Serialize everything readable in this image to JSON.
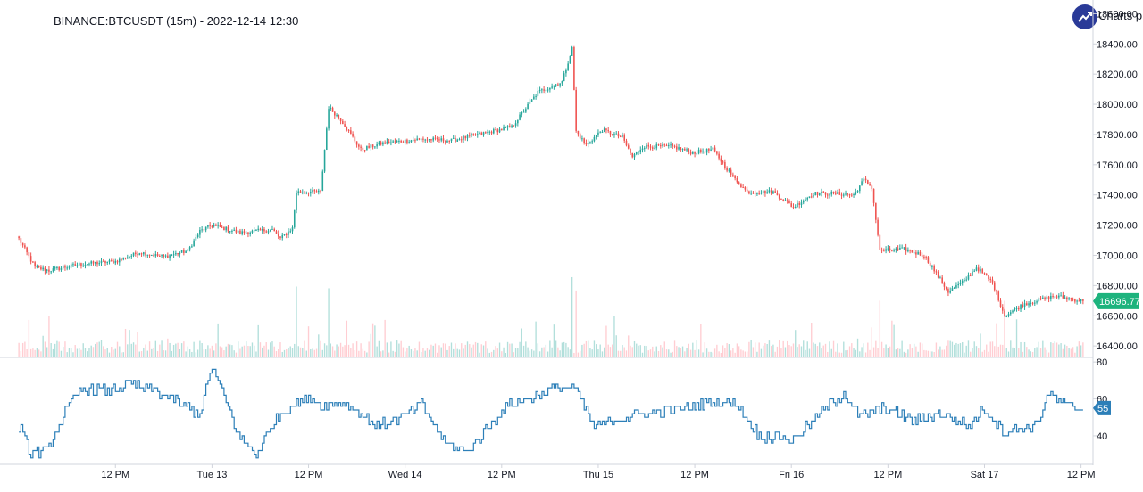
{
  "header": {
    "title": "BINANCE:BTCUSDT (15m) - 2022-12-14 12:30",
    "logo_text": "Charts p"
  },
  "colors": {
    "up": "#26a69a",
    "down": "#ef5350",
    "up_volume": "#b2dfdb",
    "down_volume": "#ffcdd2",
    "rsi_line": "#2c7fb8",
    "last_price_bg": "#1db37d",
    "rsi_badge_bg": "#2c7fb8",
    "axis_text": "#131722",
    "grid_border": "#d1d4dc"
  },
  "chart_data": [
    {
      "type": "candlestick",
      "title": "BINANCE:BTCUSDT (15m) - 2022-12-14 12:30",
      "series_name": "BTCUSDT",
      "interval": "15m",
      "y_ticks": [
        16400,
        16600,
        16800,
        17000,
        17200,
        17400,
        17600,
        17800,
        18000,
        18200,
        18400,
        18600
      ],
      "y_tick_labels": [
        "16400.00",
        "16600.00",
        "16800.00",
        "17000.00",
        "17200.00",
        "17400.00",
        "17600.00",
        "17800.00",
        "18000.00",
        "18200.00",
        "18400.00",
        "18600.00"
      ],
      "ylim": [
        16330,
        18620
      ],
      "x_tick_labels": [
        "12 PM",
        "Tue 13",
        "12 PM",
        "Wed 14",
        "12 PM",
        "Thu 15",
        "12 PM",
        "Fri 16",
        "12 PM",
        "Sat 17",
        "12 PM"
      ],
      "x_tick_bars": [
        48,
        96,
        144,
        192,
        240,
        288,
        336,
        384,
        432,
        480,
        528
      ],
      "bar_count": 530,
      "keypoints": [
        {
          "bar": 0,
          "price": 17110
        },
        {
          "bar": 8,
          "price": 16920
        },
        {
          "bar": 15,
          "price": 16900
        },
        {
          "bar": 30,
          "price": 16940
        },
        {
          "bar": 48,
          "price": 16960
        },
        {
          "bar": 60,
          "price": 17020
        },
        {
          "bar": 72,
          "price": 16990
        },
        {
          "bar": 84,
          "price": 17030
        },
        {
          "bar": 90,
          "price": 17160
        },
        {
          "bar": 96,
          "price": 17200
        },
        {
          "bar": 110,
          "price": 17150
        },
        {
          "bar": 126,
          "price": 17170
        },
        {
          "bar": 130,
          "price": 17110
        },
        {
          "bar": 136,
          "price": 17180
        },
        {
          "bar": 138,
          "price": 17420
        },
        {
          "bar": 150,
          "price": 17420
        },
        {
          "bar": 154,
          "price": 17980
        },
        {
          "bar": 160,
          "price": 17900
        },
        {
          "bar": 170,
          "price": 17700
        },
        {
          "bar": 180,
          "price": 17740
        },
        {
          "bar": 200,
          "price": 17770
        },
        {
          "bar": 215,
          "price": 17760
        },
        {
          "bar": 235,
          "price": 17820
        },
        {
          "bar": 245,
          "price": 17850
        },
        {
          "bar": 258,
          "price": 18080
        },
        {
          "bar": 270,
          "price": 18150
        },
        {
          "bar": 275,
          "price": 18370
        },
        {
          "bar": 277,
          "price": 17820
        },
        {
          "bar": 282,
          "price": 17730
        },
        {
          "bar": 290,
          "price": 17830
        },
        {
          "bar": 300,
          "price": 17780
        },
        {
          "bar": 305,
          "price": 17650
        },
        {
          "bar": 310,
          "price": 17720
        },
        {
          "bar": 325,
          "price": 17720
        },
        {
          "bar": 335,
          "price": 17680
        },
        {
          "bar": 345,
          "price": 17700
        },
        {
          "bar": 355,
          "price": 17520
        },
        {
          "bar": 362,
          "price": 17420
        },
        {
          "bar": 375,
          "price": 17420
        },
        {
          "bar": 385,
          "price": 17320
        },
        {
          "bar": 395,
          "price": 17410
        },
        {
          "bar": 405,
          "price": 17410
        },
        {
          "bar": 415,
          "price": 17400
        },
        {
          "bar": 420,
          "price": 17500
        },
        {
          "bar": 424,
          "price": 17450
        },
        {
          "bar": 428,
          "price": 17030
        },
        {
          "bar": 440,
          "price": 17040
        },
        {
          "bar": 450,
          "price": 17000
        },
        {
          "bar": 455,
          "price": 16900
        },
        {
          "bar": 462,
          "price": 16760
        },
        {
          "bar": 470,
          "price": 16830
        },
        {
          "bar": 476,
          "price": 16920
        },
        {
          "bar": 484,
          "price": 16820
        },
        {
          "bar": 490,
          "price": 16600
        },
        {
          "bar": 500,
          "price": 16680
        },
        {
          "bar": 515,
          "price": 16730
        },
        {
          "bar": 529,
          "price": 16697
        }
      ],
      "volume_spike_bars": [
        138,
        154,
        275,
        277,
        428,
        490
      ]
    },
    {
      "type": "line",
      "series_name": "RSI",
      "y_ticks": [
        40,
        60,
        80
      ],
      "y_tick_labels": [
        "40",
        "60",
        "80"
      ],
      "ylim": [
        25,
        82
      ],
      "keypoints": [
        {
          "bar": 0,
          "value": 45
        },
        {
          "bar": 6,
          "value": 30
        },
        {
          "bar": 14,
          "value": 32
        },
        {
          "bar": 24,
          "value": 55
        },
        {
          "bar": 32,
          "value": 66
        },
        {
          "bar": 44,
          "value": 64
        },
        {
          "bar": 55,
          "value": 68
        },
        {
          "bar": 66,
          "value": 65
        },
        {
          "bar": 76,
          "value": 60
        },
        {
          "bar": 90,
          "value": 52
        },
        {
          "bar": 96,
          "value": 78
        },
        {
          "bar": 104,
          "value": 55
        },
        {
          "bar": 110,
          "value": 38
        },
        {
          "bar": 118,
          "value": 30
        },
        {
          "bar": 128,
          "value": 50
        },
        {
          "bar": 138,
          "value": 58
        },
        {
          "bar": 145,
          "value": 60
        },
        {
          "bar": 152,
          "value": 56
        },
        {
          "bar": 162,
          "value": 58
        },
        {
          "bar": 178,
          "value": 45
        },
        {
          "bar": 190,
          "value": 50
        },
        {
          "bar": 200,
          "value": 57
        },
        {
          "bar": 212,
          "value": 36
        },
        {
          "bar": 222,
          "value": 31
        },
        {
          "bar": 232,
          "value": 43
        },
        {
          "bar": 242,
          "value": 56
        },
        {
          "bar": 256,
          "value": 61
        },
        {
          "bar": 266,
          "value": 66
        },
        {
          "bar": 276,
          "value": 66
        },
        {
          "bar": 286,
          "value": 45
        },
        {
          "bar": 300,
          "value": 50
        },
        {
          "bar": 315,
          "value": 52
        },
        {
          "bar": 330,
          "value": 55
        },
        {
          "bar": 342,
          "value": 58
        },
        {
          "bar": 356,
          "value": 58
        },
        {
          "bar": 368,
          "value": 40
        },
        {
          "bar": 385,
          "value": 38
        },
        {
          "bar": 398,
          "value": 52
        },
        {
          "bar": 410,
          "value": 63
        },
        {
          "bar": 418,
          "value": 50
        },
        {
          "bar": 430,
          "value": 55
        },
        {
          "bar": 445,
          "value": 48
        },
        {
          "bar": 460,
          "value": 52
        },
        {
          "bar": 472,
          "value": 45
        },
        {
          "bar": 480,
          "value": 55
        },
        {
          "bar": 490,
          "value": 42
        },
        {
          "bar": 505,
          "value": 45
        },
        {
          "bar": 512,
          "value": 63
        },
        {
          "bar": 520,
          "value": 56
        },
        {
          "bar": 529,
          "value": 55
        }
      ]
    }
  ],
  "last_price_label": "16696.77",
  "rsi_last_label": "55"
}
